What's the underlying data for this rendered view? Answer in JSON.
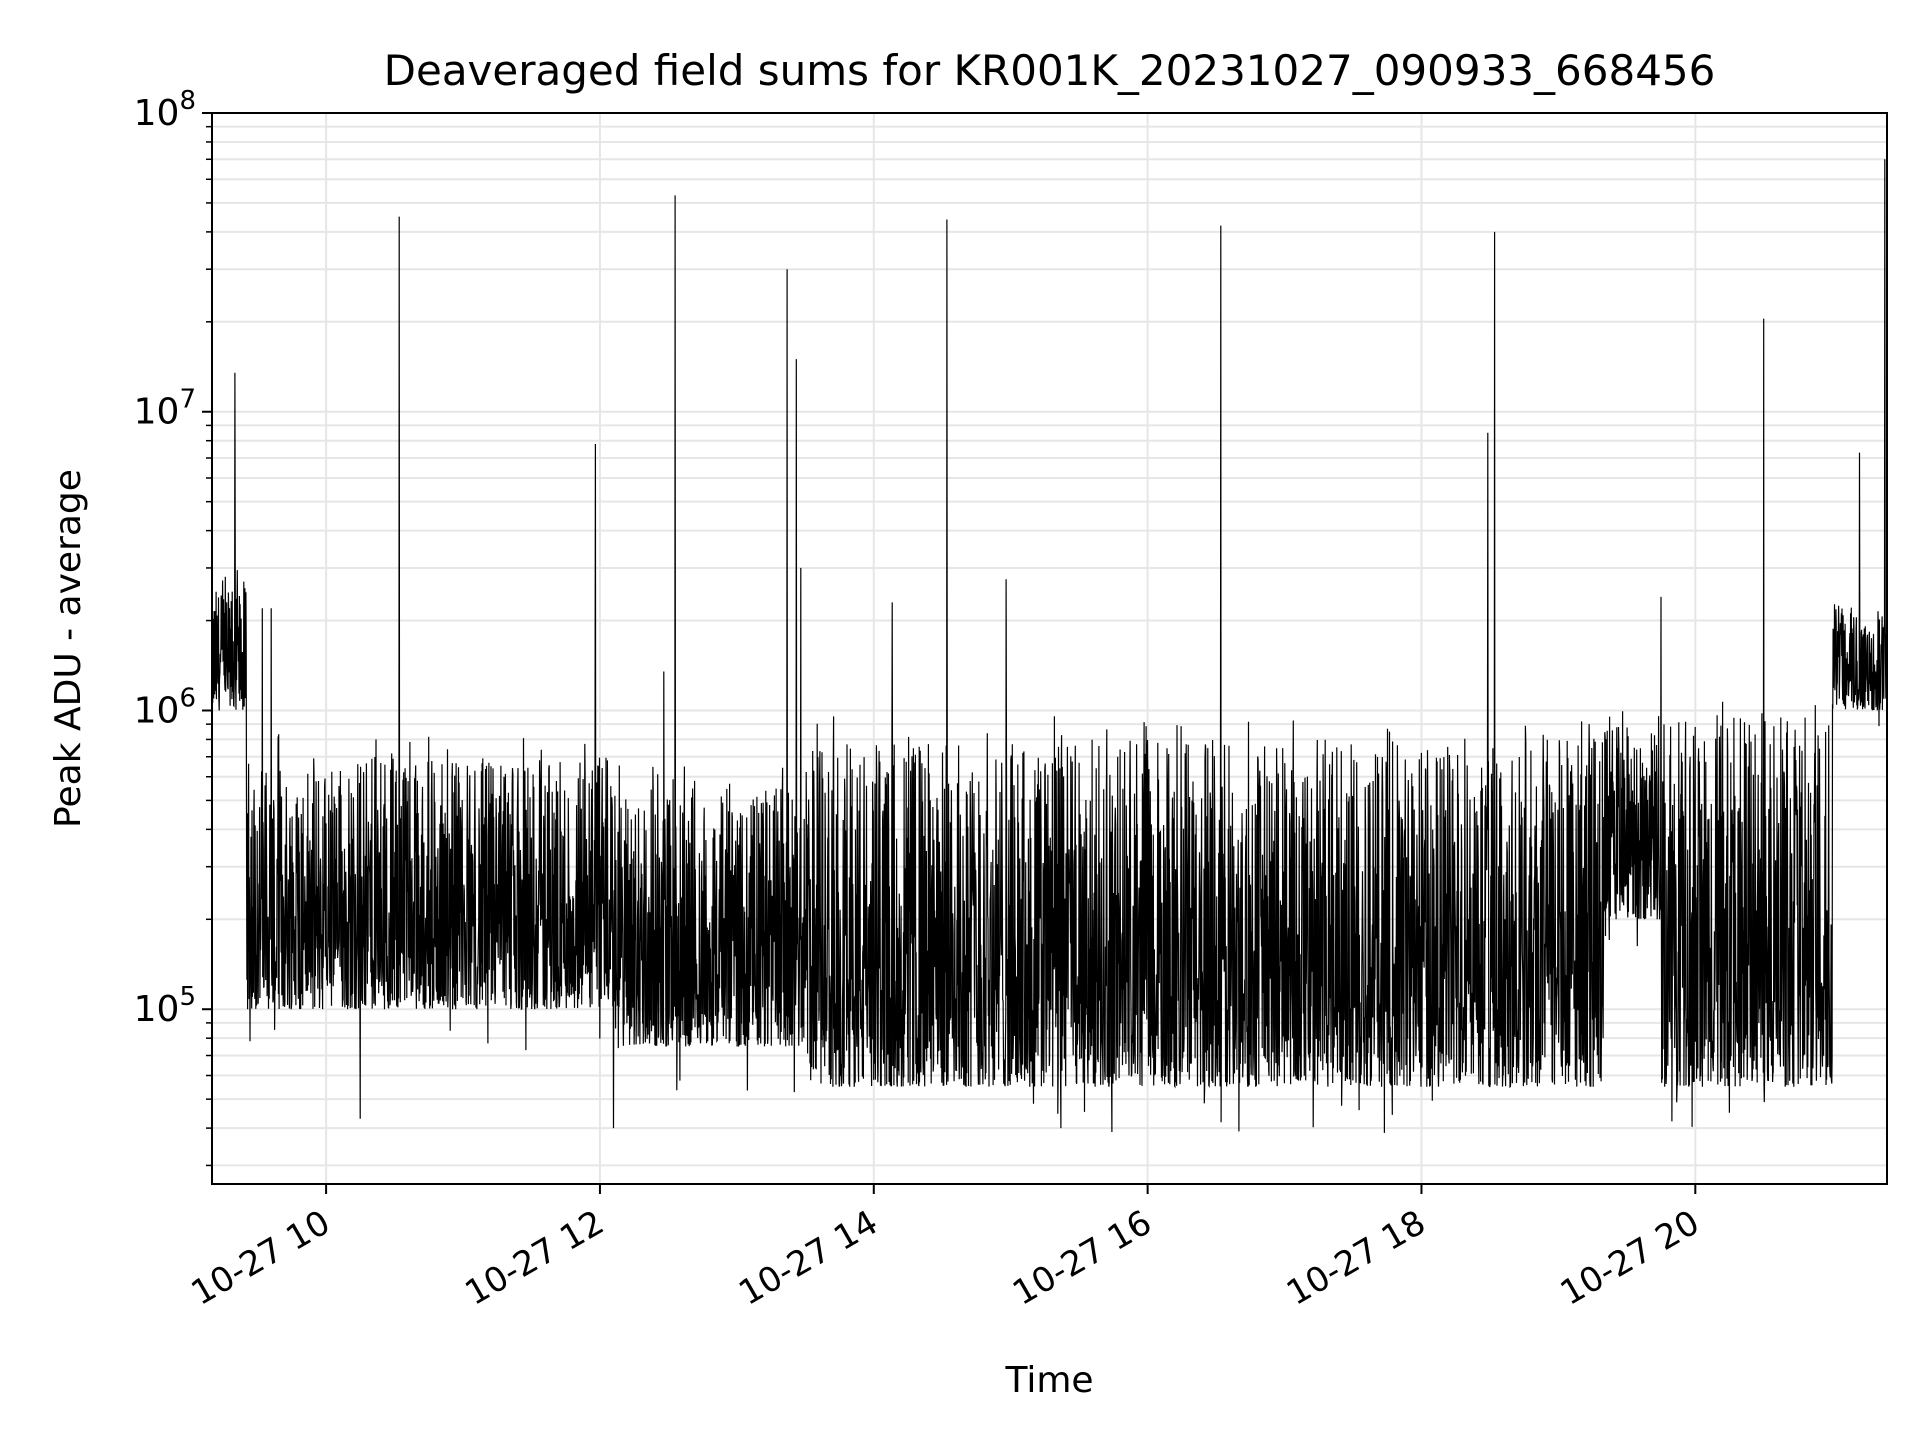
{
  "chart_data": {
    "type": "line",
    "title": "Deaveraged field sums for KR001K_20231027_090933_668456",
    "xlabel": "Time",
    "ylabel": "Peak ADU - average",
    "yscale": "log",
    "xlim": [
      "2023-10-27 09:10",
      "2023-10-27 21:24"
    ],
    "ylim": [
      26000,
      100000000
    ],
    "grid": true,
    "x_ticks": [
      {
        "value": "2023-10-27 10:00",
        "label": "10-27 10"
      },
      {
        "value": "2023-10-27 12:00",
        "label": "10-27 12"
      },
      {
        "value": "2023-10-27 14:00",
        "label": "10-27 14"
      },
      {
        "value": "2023-10-27 16:00",
        "label": "10-27 16"
      },
      {
        "value": "2023-10-27 18:00",
        "label": "10-27 18"
      },
      {
        "value": "2023-10-27 20:00",
        "label": "10-27 20"
      }
    ],
    "y_ticks": [
      {
        "value": 100000,
        "base": "10",
        "exp": "5"
      },
      {
        "value": 1000000,
        "base": "10",
        "exp": "6"
      },
      {
        "value": 10000000,
        "base": "10",
        "exp": "7"
      },
      {
        "value": 100000000,
        "base": "10",
        "exp": "8"
      }
    ],
    "line_color": "#000000",
    "baseline_segments": [
      {
        "x": [
          "2023-10-27 09:10",
          "2023-10-27 09:25"
        ],
        "low": 1000000,
        "high": 2600000
      },
      {
        "x": [
          "2023-10-27 09:25",
          "2023-10-27 12:10"
        ],
        "low": 100000,
        "high": 700000
      },
      {
        "x": [
          "2023-10-27 12:10",
          "2023-10-27 13:30"
        ],
        "low": 75000,
        "high": 550000
      },
      {
        "x": [
          "2023-10-27 13:30",
          "2023-10-27 19:20"
        ],
        "low": 55000,
        "high": 800000
      },
      {
        "x": [
          "2023-10-27 19:20",
          "2023-10-27 19:45"
        ],
        "low": 200000,
        "high": 900000
      },
      {
        "x": [
          "2023-10-27 19:45",
          "2023-10-27 21:00"
        ],
        "low": 55000,
        "high": 950000
      },
      {
        "x": [
          "2023-10-27 21:00",
          "2023-10-27 21:24"
        ],
        "low": 1000000,
        "high": 2300000
      }
    ],
    "spikes": [
      {
        "x": "2023-10-27 09:20",
        "y": 13500000
      },
      {
        "x": "2023-10-27 09:24",
        "y": 2700000
      },
      {
        "x": "2023-10-27 09:32",
        "y": 2200000
      },
      {
        "x": "2023-10-27 09:36",
        "y": 2200000
      },
      {
        "x": "2023-10-27 10:32",
        "y": 45000000
      },
      {
        "x": "2023-10-27 11:58",
        "y": 7800000
      },
      {
        "x": "2023-10-27 12:28",
        "y": 1350000
      },
      {
        "x": "2023-10-27 12:33",
        "y": 53000000
      },
      {
        "x": "2023-10-27 13:22",
        "y": 30000000
      },
      {
        "x": "2023-10-27 13:26",
        "y": 15000000
      },
      {
        "x": "2023-10-27 13:28",
        "y": 3000000
      },
      {
        "x": "2023-10-27 14:08",
        "y": 2300000
      },
      {
        "x": "2023-10-27 14:32",
        "y": 44000000
      },
      {
        "x": "2023-10-27 14:58",
        "y": 2750000
      },
      {
        "x": "2023-10-27 16:32",
        "y": 42000000
      },
      {
        "x": "2023-10-27 18:29",
        "y": 8500000
      },
      {
        "x": "2023-10-27 18:32",
        "y": 40000000
      },
      {
        "x": "2023-10-27 19:45",
        "y": 2400000
      },
      {
        "x": "2023-10-27 20:30",
        "y": 20500000
      },
      {
        "x": "2023-10-27 21:12",
        "y": 7300000
      },
      {
        "x": "2023-10-27 21:23",
        "y": 70000000
      }
    ],
    "dips": [
      {
        "x": "2023-10-27 10:15",
        "y": 43000
      },
      {
        "x": "2023-10-27 12:06",
        "y": 40000
      },
      {
        "x": "2023-10-27 15:22",
        "y": 40000
      },
      {
        "x": "2023-10-27 16:40",
        "y": 39000
      },
      {
        "x": "2023-10-27 20:15",
        "y": 45000
      }
    ]
  }
}
